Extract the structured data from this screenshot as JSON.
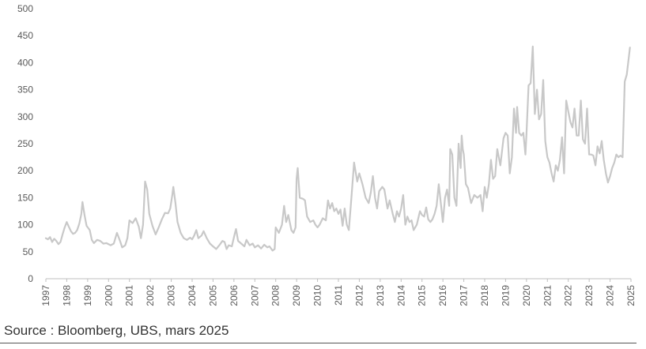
{
  "colors": {
    "series": "#c8c8c8",
    "axis": "#bfbfbf",
    "text": "#595959"
  },
  "source": "Source : Bloomberg, UBS, mars 2025",
  "chart_data": {
    "type": "line",
    "title": "",
    "xlabel": "",
    "ylabel": "",
    "xlim": [
      1997,
      2025
    ],
    "ylim": [
      0,
      500
    ],
    "yticks": [
      0,
      50,
      100,
      150,
      200,
      250,
      300,
      350,
      400,
      450,
      500
    ],
    "xticks": [
      "1997",
      "1998",
      "1999",
      "2000",
      "2001",
      "2002",
      "2003",
      "2004",
      "2005",
      "2006",
      "2007",
      "2008",
      "2009",
      "2010",
      "2011",
      "2012",
      "2013",
      "2014",
      "2015",
      "2016",
      "2017",
      "2018",
      "2019",
      "2020",
      "2021",
      "2022",
      "2023",
      "2024",
      "2025"
    ],
    "grid": false,
    "legend": "none",
    "series": [
      {
        "points": [
          [
            1997.0,
            75
          ],
          [
            1997.1,
            73
          ],
          [
            1997.2,
            77
          ],
          [
            1997.3,
            68
          ],
          [
            1997.4,
            74
          ],
          [
            1997.5,
            70
          ],
          [
            1997.6,
            64
          ],
          [
            1997.7,
            68
          ],
          [
            1997.8,
            82
          ],
          [
            1997.9,
            95
          ],
          [
            1998.0,
            105
          ],
          [
            1998.1,
            96
          ],
          [
            1998.2,
            88
          ],
          [
            1998.3,
            83
          ],
          [
            1998.4,
            85
          ],
          [
            1998.5,
            90
          ],
          [
            1998.6,
            102
          ],
          [
            1998.7,
            120
          ],
          [
            1998.75,
            142
          ],
          [
            1998.85,
            118
          ],
          [
            1998.95,
            98
          ],
          [
            1999.1,
            90
          ],
          [
            1999.2,
            72
          ],
          [
            1999.3,
            66
          ],
          [
            1999.45,
            72
          ],
          [
            1999.6,
            70
          ],
          [
            1999.75,
            65
          ],
          [
            1999.9,
            66
          ],
          [
            2000.1,
            62
          ],
          [
            2000.25,
            65
          ],
          [
            2000.4,
            85
          ],
          [
            2000.55,
            70
          ],
          [
            2000.65,
            58
          ],
          [
            2000.8,
            62
          ],
          [
            2000.9,
            75
          ],
          [
            2001.0,
            108
          ],
          [
            2001.15,
            103
          ],
          [
            2001.3,
            112
          ],
          [
            2001.45,
            96
          ],
          [
            2001.55,
            75
          ],
          [
            2001.65,
            100
          ],
          [
            2001.75,
            180
          ],
          [
            2001.85,
            165
          ],
          [
            2001.95,
            120
          ],
          [
            2002.1,
            98
          ],
          [
            2002.25,
            82
          ],
          [
            2002.4,
            95
          ],
          [
            2002.55,
            110
          ],
          [
            2002.7,
            122
          ],
          [
            2002.85,
            121
          ],
          [
            2002.95,
            130
          ],
          [
            2003.05,
            155
          ],
          [
            2003.1,
            170
          ],
          [
            2003.2,
            140
          ],
          [
            2003.3,
            105
          ],
          [
            2003.45,
            85
          ],
          [
            2003.6,
            75
          ],
          [
            2003.75,
            72
          ],
          [
            2003.9,
            76
          ],
          [
            2004.0,
            73
          ],
          [
            2004.1,
            80
          ],
          [
            2004.2,
            90
          ],
          [
            2004.3,
            75
          ],
          [
            2004.45,
            80
          ],
          [
            2004.55,
            88
          ],
          [
            2004.7,
            75
          ],
          [
            2004.85,
            65
          ],
          [
            2005.0,
            60
          ],
          [
            2005.15,
            55
          ],
          [
            2005.3,
            62
          ],
          [
            2005.45,
            70
          ],
          [
            2005.55,
            68
          ],
          [
            2005.65,
            55
          ],
          [
            2005.75,
            62
          ],
          [
            2005.9,
            60
          ],
          [
            2006.05,
            85
          ],
          [
            2006.1,
            92
          ],
          [
            2006.2,
            70
          ],
          [
            2006.35,
            65
          ],
          [
            2006.5,
            60
          ],
          [
            2006.6,
            72
          ],
          [
            2006.75,
            62
          ],
          [
            2006.9,
            65
          ],
          [
            2007.0,
            58
          ],
          [
            2007.15,
            62
          ],
          [
            2007.3,
            56
          ],
          [
            2007.45,
            63
          ],
          [
            2007.6,
            58
          ],
          [
            2007.7,
            60
          ],
          [
            2007.85,
            52
          ],
          [
            2007.95,
            55
          ],
          [
            2008.0,
            95
          ],
          [
            2008.15,
            85
          ],
          [
            2008.3,
            100
          ],
          [
            2008.4,
            135
          ],
          [
            2008.5,
            105
          ],
          [
            2008.6,
            118
          ],
          [
            2008.75,
            90
          ],
          [
            2008.85,
            85
          ],
          [
            2008.95,
            95
          ],
          [
            2009.0,
            185
          ],
          [
            2009.05,
            205
          ],
          [
            2009.15,
            150
          ],
          [
            2009.3,
            148
          ],
          [
            2009.4,
            145
          ],
          [
            2009.5,
            115
          ],
          [
            2009.65,
            105
          ],
          [
            2009.8,
            108
          ],
          [
            2009.9,
            100
          ],
          [
            2010.0,
            95
          ],
          [
            2010.1,
            100
          ],
          [
            2010.25,
            112
          ],
          [
            2010.4,
            108
          ],
          [
            2010.5,
            145
          ],
          [
            2010.6,
            130
          ],
          [
            2010.7,
            140
          ],
          [
            2010.8,
            125
          ],
          [
            2010.9,
            130
          ],
          [
            2011.0,
            120
          ],
          [
            2011.1,
            128
          ],
          [
            2011.2,
            98
          ],
          [
            2011.3,
            130
          ],
          [
            2011.4,
            100
          ],
          [
            2011.5,
            90
          ],
          [
            2011.6,
            140
          ],
          [
            2011.75,
            215
          ],
          [
            2011.9,
            180
          ],
          [
            2012.0,
            195
          ],
          [
            2012.15,
            175
          ],
          [
            2012.3,
            150
          ],
          [
            2012.45,
            140
          ],
          [
            2012.55,
            160
          ],
          [
            2012.65,
            190
          ],
          [
            2012.75,
            150
          ],
          [
            2012.85,
            130
          ],
          [
            2012.95,
            162
          ],
          [
            2013.1,
            170
          ],
          [
            2013.2,
            165
          ],
          [
            2013.35,
            130
          ],
          [
            2013.45,
            145
          ],
          [
            2013.6,
            120
          ],
          [
            2013.7,
            105
          ],
          [
            2013.8,
            125
          ],
          [
            2013.9,
            115
          ],
          [
            2014.0,
            130
          ],
          [
            2014.1,
            155
          ],
          [
            2014.2,
            100
          ],
          [
            2014.3,
            115
          ],
          [
            2014.4,
            105
          ],
          [
            2014.5,
            108
          ],
          [
            2014.6,
            90
          ],
          [
            2014.75,
            100
          ],
          [
            2014.9,
            125
          ],
          [
            2015.0,
            118
          ],
          [
            2015.1,
            115
          ],
          [
            2015.2,
            132
          ],
          [
            2015.3,
            110
          ],
          [
            2015.4,
            105
          ],
          [
            2015.5,
            110
          ],
          [
            2015.6,
            120
          ],
          [
            2015.7,
            135
          ],
          [
            2015.8,
            175
          ],
          [
            2015.9,
            140
          ],
          [
            2016.0,
            105
          ],
          [
            2016.1,
            150
          ],
          [
            2016.2,
            165
          ],
          [
            2016.3,
            135
          ],
          [
            2016.35,
            240
          ],
          [
            2016.45,
            230
          ],
          [
            2016.55,
            150
          ],
          [
            2016.65,
            135
          ],
          [
            2016.75,
            250
          ],
          [
            2016.85,
            205
          ],
          [
            2016.9,
            265
          ],
          [
            2016.95,
            240
          ],
          [
            2017.0,
            230
          ],
          [
            2017.1,
            175
          ],
          [
            2017.2,
            168
          ],
          [
            2017.35,
            140
          ],
          [
            2017.5,
            155
          ],
          [
            2017.65,
            150
          ],
          [
            2017.8,
            155
          ],
          [
            2017.9,
            125
          ],
          [
            2018.0,
            170
          ],
          [
            2018.1,
            150
          ],
          [
            2018.2,
            175
          ],
          [
            2018.3,
            220
          ],
          [
            2018.4,
            185
          ],
          [
            2018.5,
            190
          ],
          [
            2018.6,
            240
          ],
          [
            2018.75,
            210
          ],
          [
            2018.9,
            260
          ],
          [
            2019.0,
            270
          ],
          [
            2019.1,
            265
          ],
          [
            2019.2,
            195
          ],
          [
            2019.3,
            225
          ],
          [
            2019.4,
            315
          ],
          [
            2019.5,
            270
          ],
          [
            2019.55,
            318
          ],
          [
            2019.65,
            270
          ],
          [
            2019.75,
            265
          ],
          [
            2019.85,
            270
          ],
          [
            2019.95,
            230
          ],
          [
            2020.0,
            270
          ],
          [
            2020.1,
            358
          ],
          [
            2020.2,
            362
          ],
          [
            2020.3,
            430
          ],
          [
            2020.4,
            305
          ],
          [
            2020.5,
            350
          ],
          [
            2020.6,
            295
          ],
          [
            2020.7,
            305
          ],
          [
            2020.8,
            368
          ],
          [
            2020.9,
            255
          ],
          [
            2021.0,
            225
          ],
          [
            2021.1,
            215
          ],
          [
            2021.2,
            195
          ],
          [
            2021.3,
            180
          ],
          [
            2021.4,
            210
          ],
          [
            2021.5,
            200
          ],
          [
            2021.6,
            220
          ],
          [
            2021.7,
            262
          ],
          [
            2021.8,
            195
          ],
          [
            2021.9,
            330
          ],
          [
            2022.0,
            310
          ],
          [
            2022.1,
            290
          ],
          [
            2022.2,
            280
          ],
          [
            2022.3,
            315
          ],
          [
            2022.4,
            265
          ],
          [
            2022.5,
            265
          ],
          [
            2022.6,
            330
          ],
          [
            2022.7,
            258
          ],
          [
            2022.8,
            250
          ],
          [
            2022.9,
            315
          ],
          [
            2023.0,
            230
          ],
          [
            2023.1,
            230
          ],
          [
            2023.2,
            228
          ],
          [
            2023.3,
            210
          ],
          [
            2023.4,
            245
          ],
          [
            2023.5,
            232
          ],
          [
            2023.6,
            255
          ],
          [
            2023.7,
            220
          ],
          [
            2023.8,
            195
          ],
          [
            2023.9,
            178
          ],
          [
            2024.0,
            190
          ],
          [
            2024.1,
            205
          ],
          [
            2024.2,
            215
          ],
          [
            2024.3,
            230
          ],
          [
            2024.4,
            225
          ],
          [
            2024.5,
            228
          ],
          [
            2024.6,
            225
          ],
          [
            2024.7,
            365
          ],
          [
            2024.8,
            378
          ],
          [
            2024.95,
            428
          ]
        ]
      }
    ]
  }
}
